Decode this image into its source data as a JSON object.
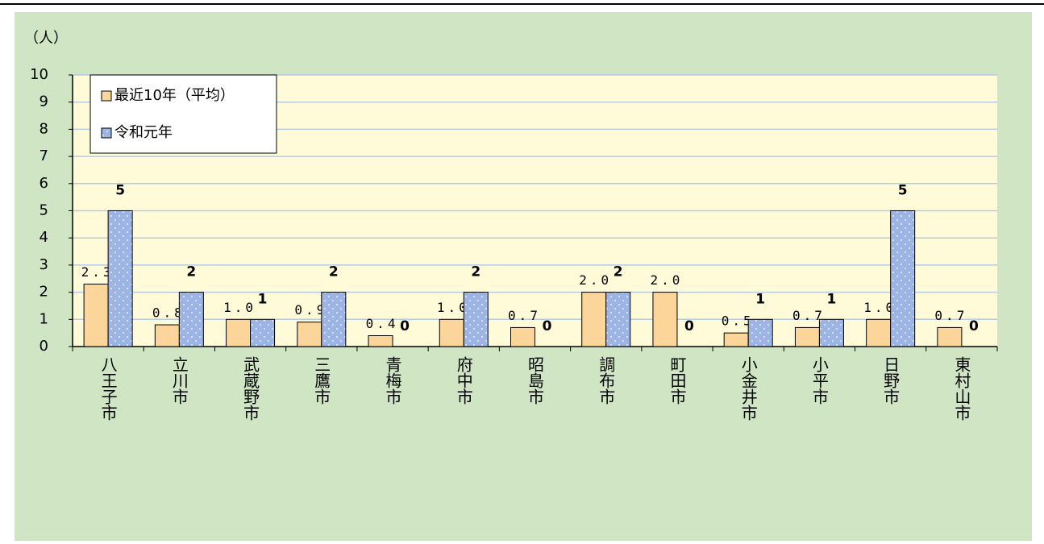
{
  "chart_data": {
    "type": "bar",
    "y_label": "（人）",
    "categories": [
      "八王子市",
      "立川市",
      "武蔵野市",
      "三鷹市",
      "青梅市",
      "府中市",
      "昭島市",
      "調布市",
      "町田市",
      "小金井市",
      "小平市",
      "日野市",
      "東村山市"
    ],
    "series": [
      {
        "name": "最近10年（平均）",
        "color": "#fbd59a",
        "values": [
          2.3,
          0.8,
          1.0,
          0.9,
          0.4,
          1.0,
          0.7,
          2.0,
          2.0,
          0.5,
          0.7,
          1.0,
          0.7
        ],
        "value_labels": [
          "2.3",
          "0.8",
          "1.0",
          "0.9",
          "0.4",
          "1.0",
          "0.7",
          "2.0",
          "2.0",
          "0.5",
          "0.7",
          "1.0",
          "0.7"
        ]
      },
      {
        "name": "令和元年",
        "color": "#9db5e5",
        "values": [
          5,
          2,
          1,
          2,
          0,
          2,
          0,
          2,
          0,
          1,
          1,
          5,
          0
        ]
      }
    ],
    "ylim": [
      0,
      10
    ],
    "yticks": [
      0,
      1,
      2,
      3,
      4,
      5,
      6,
      7,
      8,
      9,
      10
    ],
    "grid": true,
    "legend": "upper left"
  }
}
